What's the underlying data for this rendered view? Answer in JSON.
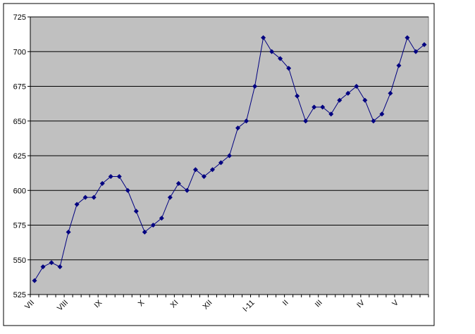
{
  "chart_data": {
    "type": "line",
    "categories": [
      "VII",
      null,
      null,
      null,
      "VIII",
      null,
      null,
      null,
      "IX",
      null,
      null,
      null,
      null,
      "X",
      null,
      null,
      null,
      "XI",
      null,
      null,
      null,
      "XII",
      null,
      null,
      null,
      null,
      "I-11",
      null,
      null,
      null,
      "II",
      null,
      null,
      null,
      "III",
      null,
      null,
      null,
      null,
      "IV",
      null,
      null,
      null,
      "V",
      null,
      null,
      null
    ],
    "series": [
      {
        "color": "#000080",
        "values": [
          535,
          545,
          548,
          545,
          570,
          590,
          595,
          595,
          605,
          610,
          610,
          600,
          585,
          570,
          575,
          580,
          595,
          605,
          600,
          615,
          610,
          615,
          620,
          625,
          645,
          650,
          675,
          710,
          700,
          695,
          688,
          668,
          650,
          660,
          660,
          655,
          665,
          670,
          675,
          665,
          650,
          655,
          670,
          690,
          710,
          700,
          705
        ]
      }
    ],
    "ylim": [
      525,
      725
    ],
    "yticks": [
      525,
      550,
      575,
      600,
      625,
      650,
      675,
      700,
      725
    ],
    "grid": true
  }
}
